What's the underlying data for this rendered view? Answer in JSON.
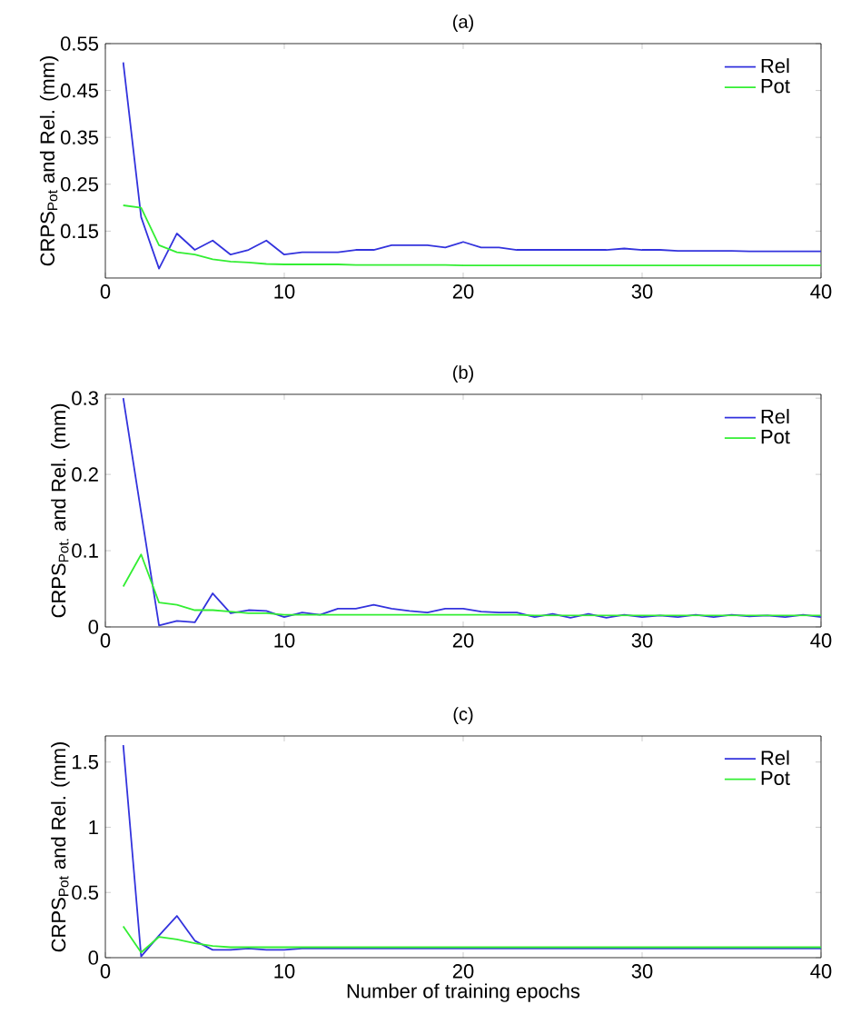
{
  "chart_data": [
    {
      "type": "line",
      "title": "(a)",
      "ylabel": "CRPS$_{Pot}$ and Rel. (mm)",
      "x": [
        1,
        2,
        3,
        4,
        5,
        6,
        7,
        8,
        9,
        10,
        11,
        12,
        13,
        14,
        15,
        16,
        17,
        18,
        19,
        20,
        21,
        22,
        23,
        24,
        25,
        26,
        27,
        28,
        29,
        30,
        31,
        32,
        33,
        34,
        35,
        36,
        37,
        38,
        39,
        40
      ],
      "series": [
        {
          "name": "Rel",
          "color": "#3333dd",
          "values": [
            0.51,
            0.18,
            0.07,
            0.145,
            0.11,
            0.13,
            0.1,
            0.11,
            0.13,
            0.1,
            0.105,
            0.105,
            0.105,
            0.11,
            0.11,
            0.12,
            0.12,
            0.12,
            0.115,
            0.127,
            0.115,
            0.115,
            0.11,
            0.11,
            0.11,
            0.11,
            0.11,
            0.11,
            0.113,
            0.11,
            0.11,
            0.108,
            0.108,
            0.108,
            0.108,
            0.107,
            0.107,
            0.107,
            0.107,
            0.107
          ]
        },
        {
          "name": "Pot",
          "color": "#33ee33",
          "values": [
            0.205,
            0.2,
            0.12,
            0.105,
            0.1,
            0.09,
            0.085,
            0.083,
            0.08,
            0.079,
            0.079,
            0.079,
            0.079,
            0.078,
            0.078,
            0.078,
            0.078,
            0.078,
            0.078,
            0.077,
            0.077,
            0.077,
            0.077,
            0.077,
            0.077,
            0.077,
            0.077,
            0.077,
            0.077,
            0.077,
            0.077,
            0.077,
            0.077,
            0.077,
            0.077,
            0.077,
            0.077,
            0.077,
            0.077,
            0.077
          ]
        }
      ],
      "xlim": [
        0,
        40
      ],
      "xticks": [
        0,
        10,
        20,
        30,
        40
      ],
      "ylim": [
        0.05,
        0.55
      ],
      "yticks": [
        0.15,
        0.25,
        0.35,
        0.45,
        0.55
      ],
      "grid": false,
      "legend": "top right"
    },
    {
      "type": "line",
      "title": "(b)",
      "ylabel": "CRPS$_{Pot.}$ and Rel. (mm)",
      "x": [
        1,
        2,
        3,
        4,
        5,
        6,
        7,
        8,
        9,
        10,
        11,
        12,
        13,
        14,
        15,
        16,
        17,
        18,
        19,
        20,
        21,
        22,
        23,
        24,
        25,
        26,
        27,
        28,
        29,
        30,
        31,
        32,
        33,
        34,
        35,
        36,
        37,
        38,
        39,
        40
      ],
      "series": [
        {
          "name": "Rel",
          "color": "#3333dd",
          "values": [
            0.3,
            0.15,
            0.002,
            0.008,
            0.006,
            0.044,
            0.018,
            0.022,
            0.021,
            0.013,
            0.019,
            0.016,
            0.024,
            0.024,
            0.029,
            0.024,
            0.021,
            0.019,
            0.024,
            0.024,
            0.02,
            0.019,
            0.019,
            0.013,
            0.017,
            0.012,
            0.017,
            0.012,
            0.016,
            0.013,
            0.015,
            0.013,
            0.016,
            0.013,
            0.016,
            0.014,
            0.015,
            0.013,
            0.016,
            0.013
          ]
        },
        {
          "name": "Pot",
          "color": "#33ee33",
          "values": [
            0.053,
            0.095,
            0.032,
            0.029,
            0.022,
            0.022,
            0.02,
            0.018,
            0.018,
            0.016,
            0.016,
            0.016,
            0.016,
            0.016,
            0.016,
            0.016,
            0.016,
            0.016,
            0.016,
            0.016,
            0.016,
            0.016,
            0.016,
            0.015,
            0.015,
            0.015,
            0.015,
            0.015,
            0.015,
            0.015,
            0.015,
            0.015,
            0.015,
            0.015,
            0.015,
            0.015,
            0.015,
            0.015,
            0.015,
            0.015
          ]
        }
      ],
      "xlim": [
        0,
        40
      ],
      "xticks": [
        0,
        10,
        20,
        30,
        40
      ],
      "ylim": [
        0,
        0.305
      ],
      "yticks": [
        0,
        0.1,
        0.2,
        0.3
      ],
      "grid": false,
      "legend": "top right"
    },
    {
      "type": "line",
      "title": "(c)",
      "xlabel": "Number of training epochs",
      "ylabel": "CRPS$_{Pot}$ and Rel. (mm)",
      "x": [
        1,
        2,
        3,
        4,
        5,
        6,
        7,
        8,
        9,
        10,
        11,
        12,
        13,
        14,
        15,
        16,
        17,
        18,
        19,
        20,
        21,
        22,
        23,
        24,
        25,
        26,
        27,
        28,
        29,
        30,
        31,
        32,
        33,
        34,
        35,
        36,
        37,
        38,
        39,
        40
      ],
      "series": [
        {
          "name": "Rel",
          "color": "#3333dd",
          "values": [
            1.63,
            0.01,
            0.17,
            0.32,
            0.13,
            0.06,
            0.06,
            0.07,
            0.06,
            0.06,
            0.07,
            0.07,
            0.07,
            0.07,
            0.07,
            0.07,
            0.07,
            0.07,
            0.07,
            0.07,
            0.07,
            0.07,
            0.07,
            0.07,
            0.07,
            0.07,
            0.07,
            0.07,
            0.07,
            0.07,
            0.07,
            0.07,
            0.07,
            0.07,
            0.07,
            0.07,
            0.07,
            0.07,
            0.07,
            0.07
          ]
        },
        {
          "name": "Pot",
          "color": "#33ee33",
          "values": [
            0.24,
            0.04,
            0.16,
            0.14,
            0.11,
            0.09,
            0.08,
            0.08,
            0.08,
            0.08,
            0.08,
            0.08,
            0.08,
            0.08,
            0.08,
            0.08,
            0.08,
            0.08,
            0.08,
            0.08,
            0.08,
            0.08,
            0.08,
            0.08,
            0.08,
            0.08,
            0.08,
            0.08,
            0.08,
            0.08,
            0.08,
            0.08,
            0.08,
            0.08,
            0.08,
            0.08,
            0.08,
            0.08,
            0.08,
            0.08
          ]
        }
      ],
      "xlim": [
        0,
        40
      ],
      "xticks": [
        0,
        10,
        20,
        30,
        40
      ],
      "ylim": [
        0,
        1.7
      ],
      "yticks": [
        0,
        0.5,
        1,
        1.5
      ],
      "grid": false,
      "legend": "top right"
    }
  ]
}
